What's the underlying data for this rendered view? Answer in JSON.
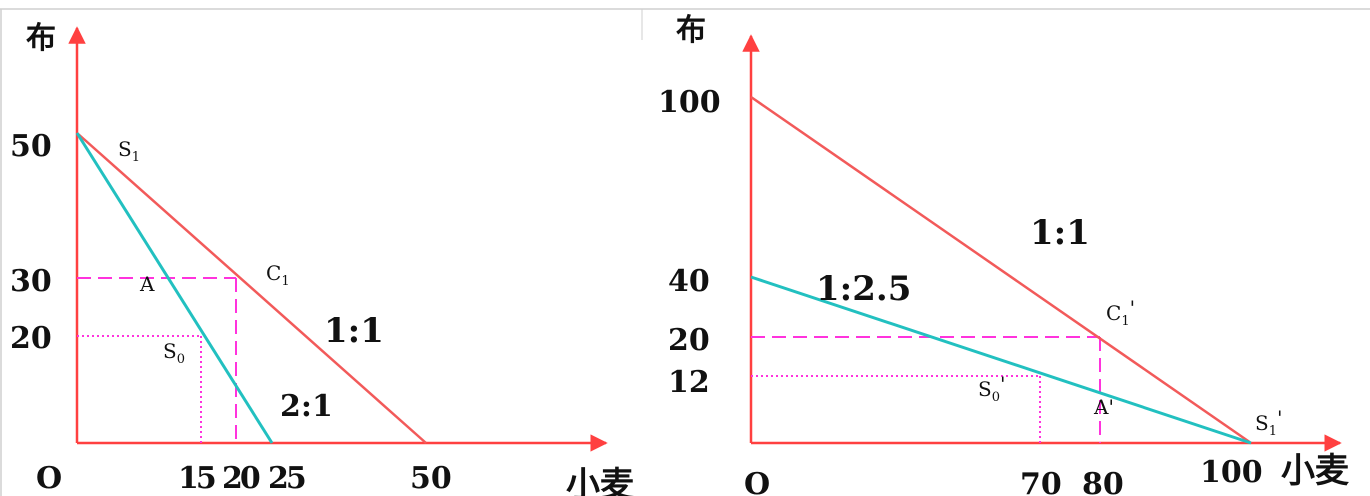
{
  "colors": {
    "axis": "#ff4040",
    "budget": "#f25a5a",
    "trade": "#22c0c0",
    "guide": "#ff33dd",
    "text": "#111111",
    "frame": "#cfcfcf"
  },
  "left": {
    "y_axis_label": "布",
    "x_axis_label": "小麦",
    "origin_label": "O",
    "y_ticks": [
      "50",
      "30",
      "20"
    ],
    "x_ticks": [
      "15",
      "20",
      "25",
      "50"
    ],
    "point_labels": {
      "s1": "S",
      "s1_sub": "1",
      "c1": "C",
      "c1_sub": "1",
      "a": "A",
      "s0": "S",
      "s0_sub": "0"
    },
    "ratio_labels": {
      "red": "1:1",
      "cyan": "2:1"
    }
  },
  "right": {
    "y_axis_label": "布",
    "x_axis_label": "小麦",
    "origin_label": "O",
    "y_ticks": [
      "100",
      "40",
      "20",
      "12"
    ],
    "x_ticks": [
      "70",
      "80",
      "100"
    ],
    "point_labels": {
      "c1": "C",
      "c1_sub": "1",
      "c1_prime": "'",
      "a": "A'",
      "s0": "S",
      "s0_sub": "0",
      "s0_prime": "'",
      "s1": "S",
      "s1_sub": "1",
      "s1_prime": "'"
    },
    "ratio_labels": {
      "red": "1:1",
      "cyan": "1:2.5"
    }
  }
}
